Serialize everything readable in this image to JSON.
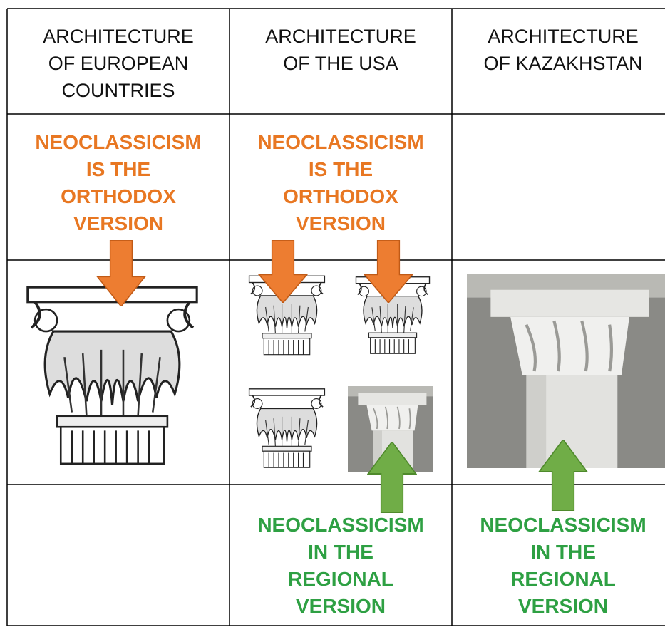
{
  "headers": [
    [
      "ARCHITECTURE",
      "OF EUROPEAN",
      "COUNTRIES"
    ],
    [
      "ARCHITECTURE",
      "OF THE USA"
    ],
    [
      "ARCHITECTURE",
      "OF KAZAKHSTAN"
    ]
  ],
  "orthodox_labels": [
    [
      "NEOCLASSICISM",
      "IS THE",
      "ORTHODOX",
      "VERSION"
    ],
    [
      "NEOCLASSICISM",
      "IS THE",
      "ORTHODOX",
      "VERSION"
    ]
  ],
  "regional_labels": [
    [
      "NEOCLASSICISM",
      "IN THE",
      "REGIONAL",
      "VERSION"
    ],
    [
      "NEOCLASSICISM",
      "IN THE",
      "REGIONAL",
      "VERSION"
    ]
  ]
}
